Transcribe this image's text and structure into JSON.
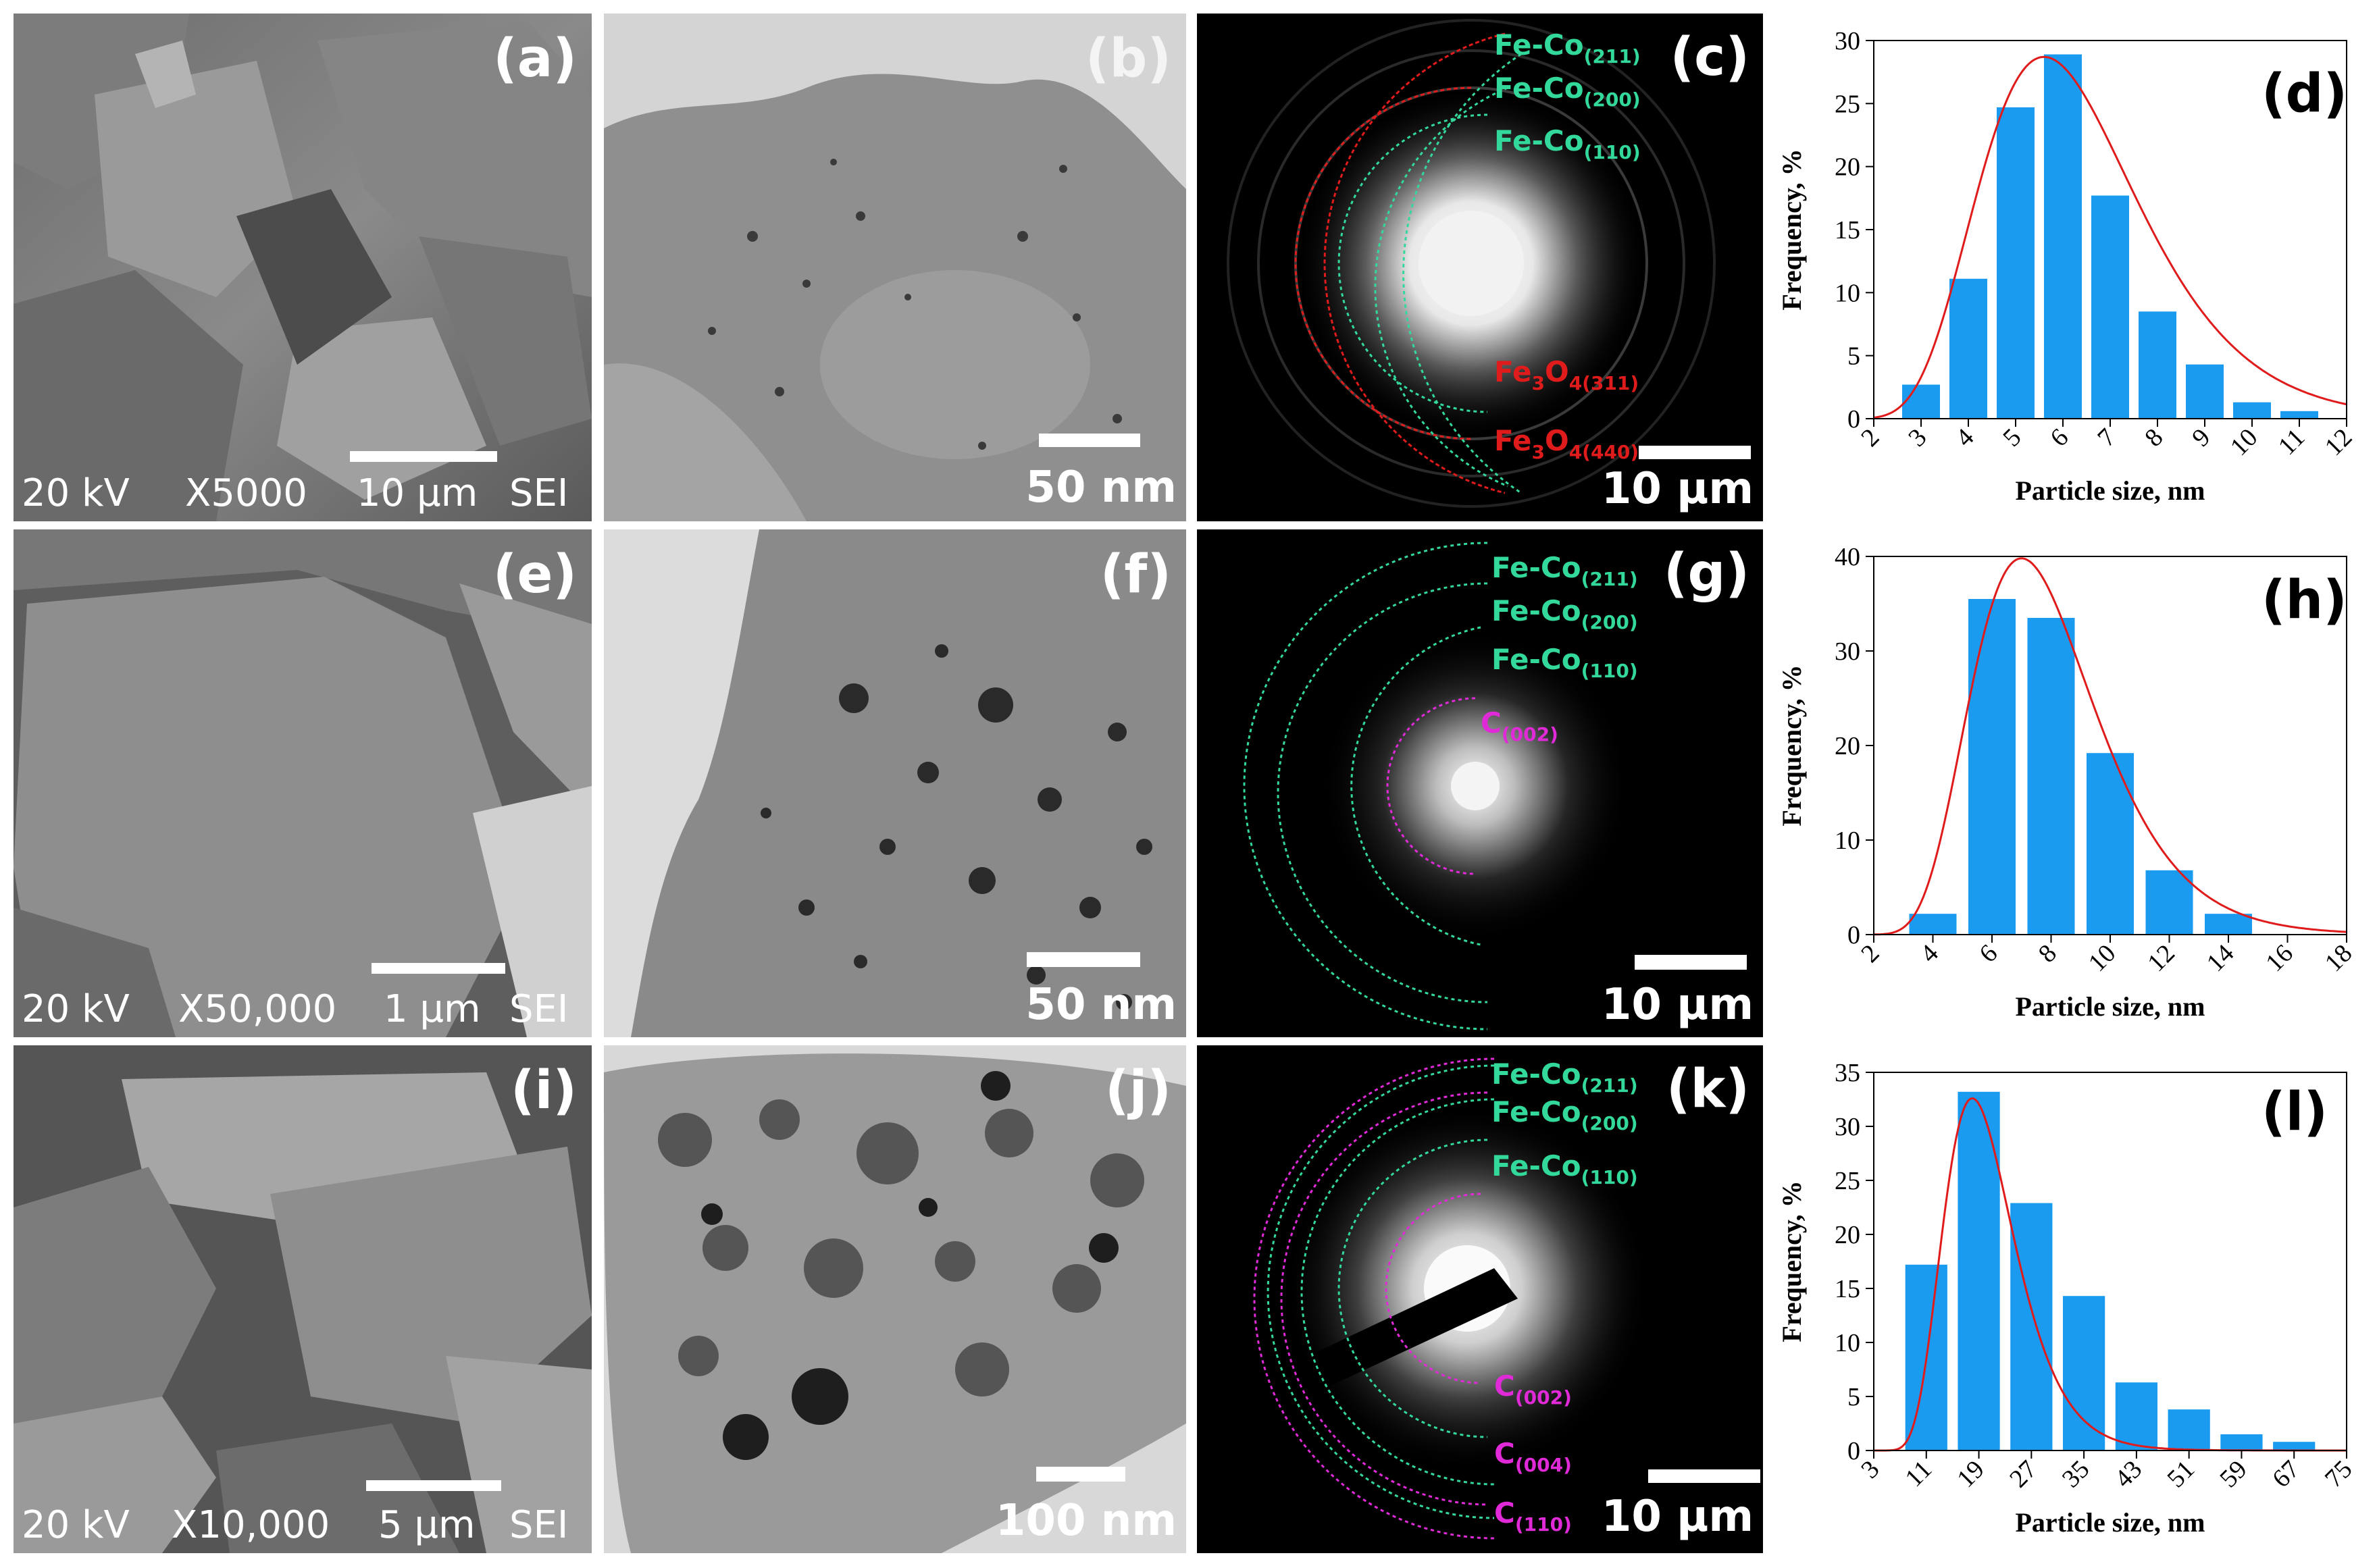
{
  "rows": [
    {
      "sem": {
        "label": "(a)",
        "kv": "20 kV",
        "mag": "X5000",
        "scale": "10 μm",
        "mode": "SEI"
      },
      "tem": {
        "label": "(b)",
        "scale": "50 nm"
      },
      "saed": {
        "label": "(c)",
        "scale": "10 μm",
        "rings": [
          {
            "main": "Fe-Co",
            "sub": "(211)",
            "color": "#33d99a"
          },
          {
            "main": "Fe-Co",
            "sub": "(200)",
            "color": "#33d99a"
          },
          {
            "main": "Fe-Co",
            "sub": "(110)",
            "color": "#33d99a"
          },
          {
            "main": "Fe",
            "sub2": "3",
            "mid": "O",
            "sub": "4(311)",
            "color": "#e01b1b"
          },
          {
            "main": "Fe",
            "sub2": "3",
            "mid": "O",
            "sub": "4(440)",
            "color": "#e01b1b"
          }
        ]
      }
    },
    {
      "sem": {
        "label": "(e)",
        "kv": "20 kV",
        "mag": "X50,000",
        "scale": "1 μm",
        "mode": "SEI"
      },
      "tem": {
        "label": "(f)",
        "scale": "50 nm"
      },
      "saed": {
        "label": "(g)",
        "scale": "10 μm",
        "rings": [
          {
            "main": "Fe-Co",
            "sub": "(211)",
            "color": "#33d99a"
          },
          {
            "main": "Fe-Co",
            "sub": "(200)",
            "color": "#33d99a"
          },
          {
            "main": "Fe-Co",
            "sub": "(110)",
            "color": "#33d99a"
          },
          {
            "main": "C",
            "sub": "(002)",
            "color": "#e02ad8"
          }
        ]
      }
    },
    {
      "sem": {
        "label": "(i)",
        "kv": "20 kV",
        "mag": "X10,000",
        "scale": "5 μm",
        "mode": "SEI"
      },
      "tem": {
        "label": "(j)",
        "scale": "100 nm"
      },
      "saed": {
        "label": "(k)",
        "scale": "10 μm",
        "rings": [
          {
            "main": "Fe-Co",
            "sub": "(211)",
            "color": "#33d99a"
          },
          {
            "main": "Fe-Co",
            "sub": "(200)",
            "color": "#33d99a"
          },
          {
            "main": "Fe-Co",
            "sub": "(110)",
            "color": "#33d99a"
          },
          {
            "main": "C",
            "sub": "(002)",
            "color": "#e02ad8"
          },
          {
            "main": "C",
            "sub": "(004)",
            "color": "#e02ad8"
          },
          {
            "main": "C",
            "sub": "(110)",
            "color": "#e02ad8"
          }
        ]
      }
    }
  ],
  "chart_data": [
    {
      "type": "bar",
      "panel_label": "(d)",
      "xlabel": "Particle size, nm",
      "ylabel": "Frequency, %",
      "xlim": [
        2,
        12
      ],
      "ylim": [
        0,
        30
      ],
      "xticks": [
        2,
        3,
        4,
        5,
        6,
        7,
        8,
        9,
        10,
        11,
        12
      ],
      "yticks": [
        0,
        5,
        10,
        15,
        20,
        25,
        30
      ],
      "bar_centers": [
        3,
        4,
        5,
        6,
        7,
        8,
        9,
        10,
        11
      ],
      "values": [
        2.7,
        11.1,
        24.7,
        28.9,
        17.7,
        8.5,
        4.3,
        1.3,
        0.6
      ],
      "fit_peak": 5.6,
      "fit_height": 28.7,
      "bar_color": "#1a9bf0",
      "fit_color": "#e01b1b"
    },
    {
      "type": "bar",
      "panel_label": "(h)",
      "xlabel": "Particle size, nm",
      "ylabel": "Frequency, %",
      "xlim": [
        2,
        18
      ],
      "ylim": [
        0,
        40
      ],
      "xticks": [
        2,
        4,
        6,
        8,
        10,
        12,
        14,
        16,
        18
      ],
      "yticks": [
        0,
        10,
        20,
        30,
        40
      ],
      "bar_centers": [
        4,
        6,
        8,
        10,
        12,
        14
      ],
      "values": [
        2.2,
        35.5,
        33.5,
        19.2,
        6.8,
        2.2
      ],
      "fit_peak": 7.0,
      "fit_height": 39.8,
      "bar_color": "#1a9bf0",
      "fit_color": "#e01b1b"
    },
    {
      "type": "bar",
      "panel_label": "(l)",
      "xlabel": "Particle size, nm",
      "ylabel": "Frequency, %",
      "xlim": [
        3,
        75
      ],
      "ylim": [
        0,
        35
      ],
      "xticks": [
        3,
        11,
        19,
        27,
        35,
        43,
        51,
        59,
        67,
        75
      ],
      "yticks": [
        0,
        5,
        10,
        15,
        20,
        25,
        30,
        35
      ],
      "bar_centers": [
        11,
        19,
        27,
        35,
        43,
        51,
        59,
        67
      ],
      "values": [
        17.2,
        33.2,
        22.9,
        14.3,
        6.3,
        3.8,
        1.5,
        0.8
      ],
      "fit_peak": 18.0,
      "fit_height": 32.6,
      "bar_color": "#1a9bf0",
      "fit_color": "#e01b1b"
    }
  ]
}
